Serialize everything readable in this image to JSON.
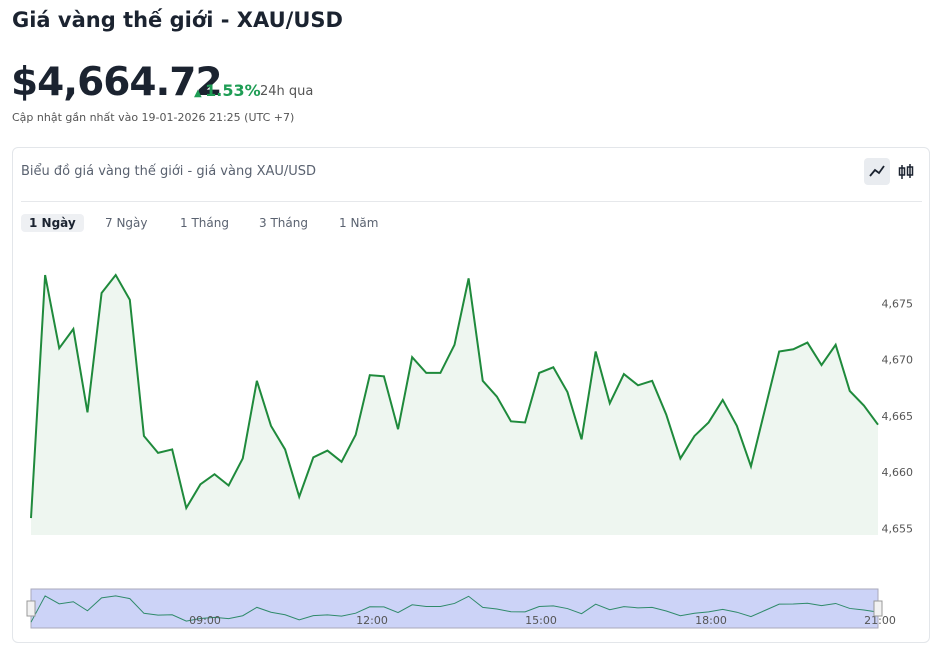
{
  "header": {
    "title": "Giá vàng thế giới - XAU/USD",
    "price": "$4,664.72",
    "change": "1.53%",
    "period": "24h qua",
    "updated": "Cập nhật gần nhất vào 19-01-2026 21:25 (UTC +7)"
  },
  "card": {
    "title": "Biểu đồ giá vàng thế giới - giá vàng XAU/USD",
    "tabs": [
      "1 Ngày",
      "7 Ngày",
      "1 Tháng",
      "3 Tháng",
      "1 Năm"
    ]
  },
  "chart_data": {
    "type": "area",
    "color": "#1f8a3c",
    "values": [
      4656.0,
      4677.6,
      4671.1,
      4672.8,
      4665.4,
      4676.0,
      4677.6,
      4675.4,
      4663.3,
      4661.8,
      4662.1,
      4656.9,
      4659.0,
      4659.9,
      4658.9,
      4661.3,
      4668.2,
      4664.2,
      4662.1,
      4657.9,
      4661.4,
      4662.0,
      4661.0,
      4663.4,
      4668.7,
      4668.6,
      4663.9,
      4670.3,
      4668.9,
      4668.9,
      4671.4,
      4677.3,
      4668.2,
      4666.8,
      4664.6,
      4664.5,
      4668.9,
      4669.4,
      4667.2,
      4663.0,
      4670.8,
      4666.2,
      4668.8,
      4667.8,
      4668.2,
      4665.2,
      4661.3,
      4663.3,
      4664.5,
      4666.5,
      4664.2,
      4660.6,
      4665.7,
      4670.8,
      4671.0,
      4671.6,
      4669.6,
      4671.4,
      4667.3,
      4666.0,
      4664.3
    ],
    "ylim": [
      4654.5,
      4680
    ],
    "yticks": [
      {
        "value": 4655,
        "label": "4,655"
      },
      {
        "value": 4660,
        "label": "4,660"
      },
      {
        "value": 4665,
        "label": "4,665"
      },
      {
        "value": 4670,
        "label": "4,670"
      },
      {
        "value": 4675,
        "label": "4,675"
      }
    ],
    "navigator_labels": [
      "09:00",
      "12:00",
      "15:00",
      "18:00",
      "21:00"
    ]
  }
}
